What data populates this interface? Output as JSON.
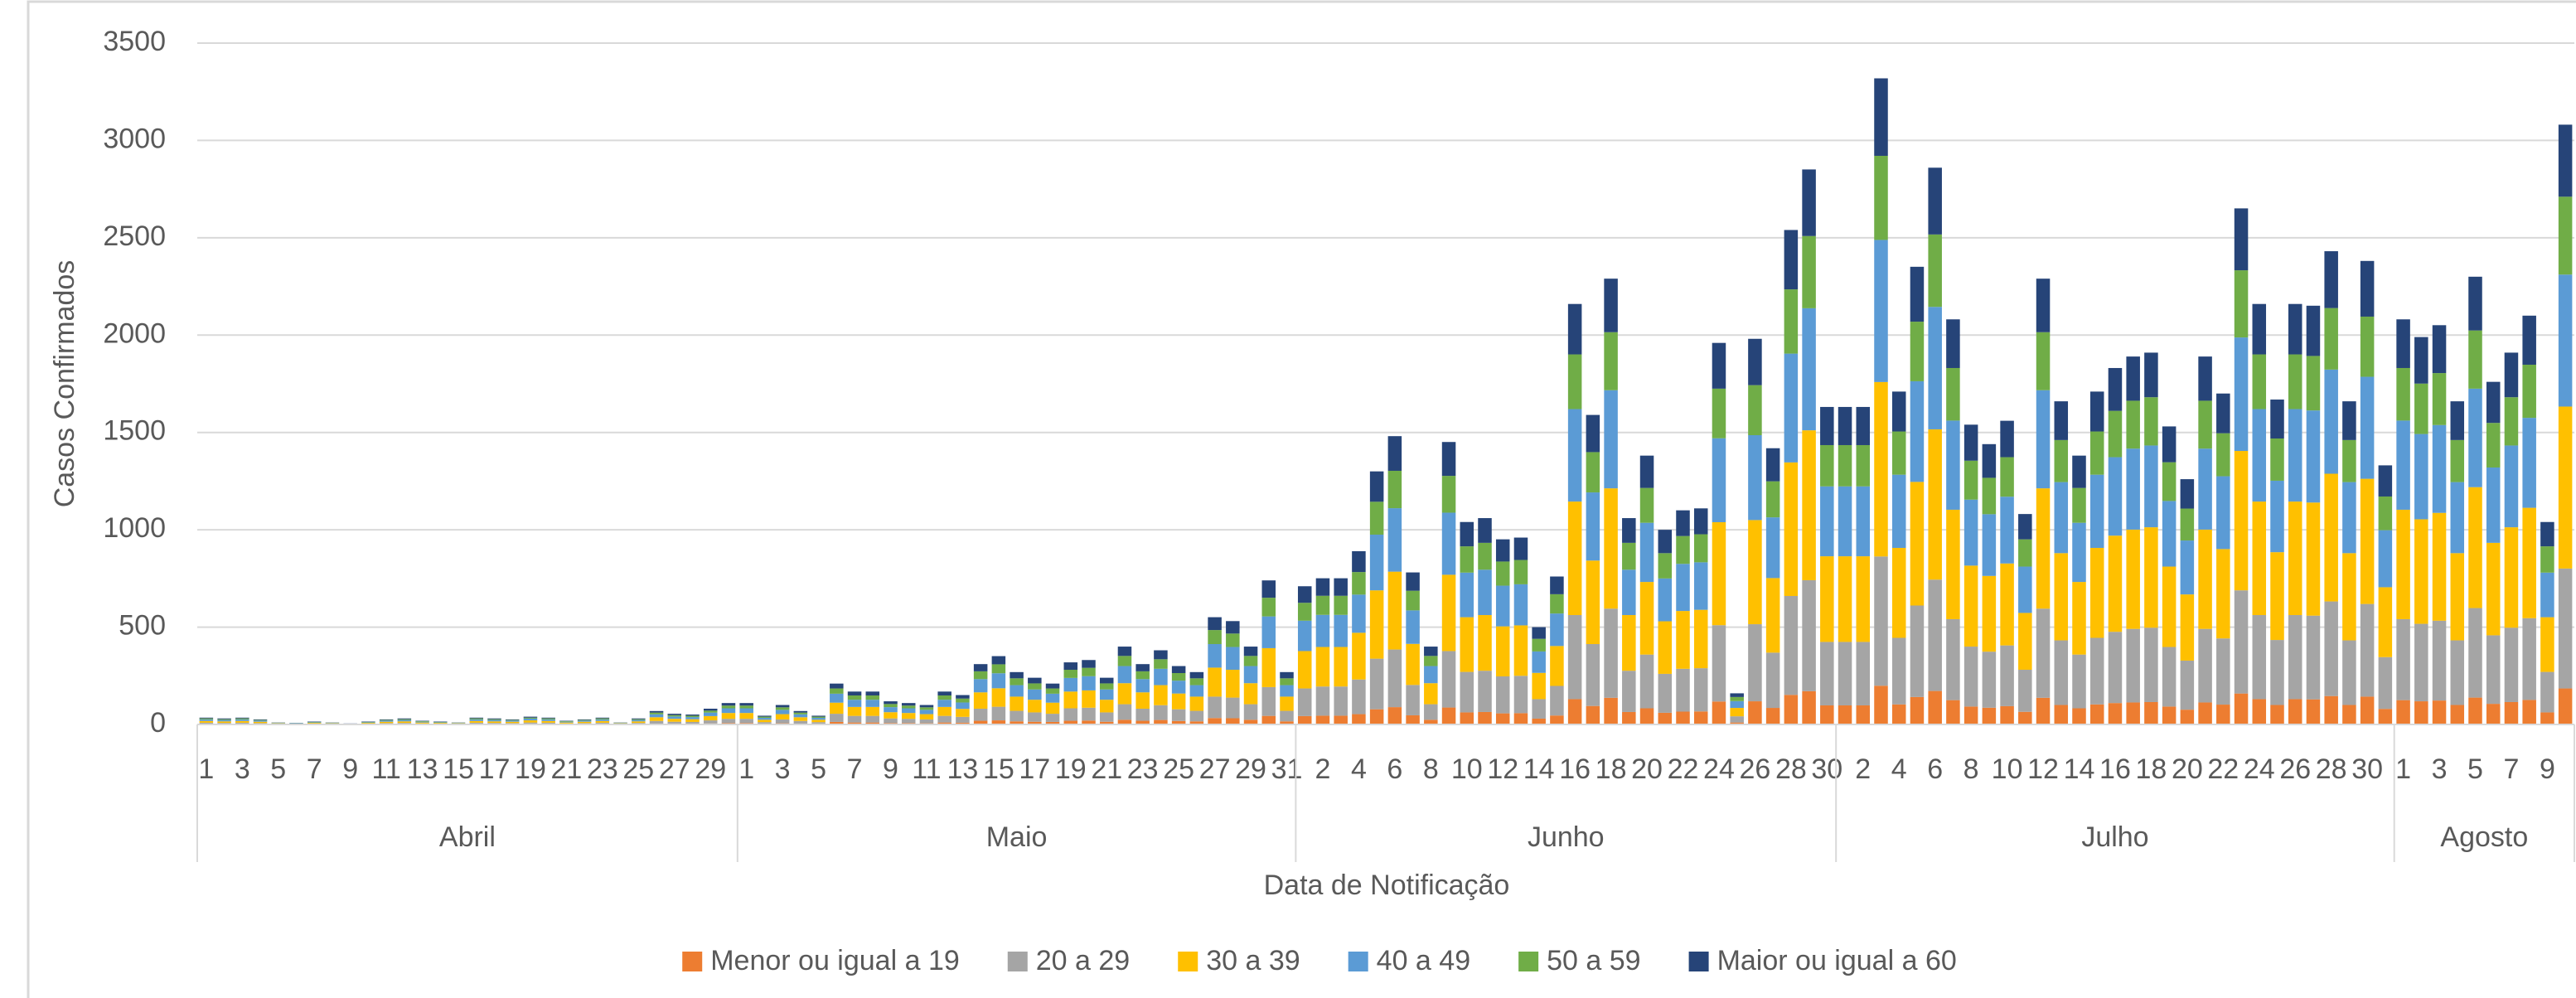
{
  "chart_data": {
    "type": "stacked_bar",
    "y_label": "Casos Confirmados",
    "x_label": "Data de Notificação",
    "ylim": [
      0,
      3500
    ],
    "yticks": [
      0,
      500,
      1000,
      1500,
      2000,
      2500,
      3000,
      3500
    ],
    "grid": true,
    "legend": "bottom",
    "x_groups": [
      {
        "label": "Abril",
        "span": 30
      },
      {
        "label": "Maio",
        "span": 31
      },
      {
        "label": "Junho",
        "span": 30
      },
      {
        "label": "Julho",
        "span": 31
      },
      {
        "label": "Agosto",
        "span": 10
      }
    ],
    "categories": [
      "1",
      null,
      "3",
      null,
      "5",
      null,
      "7",
      null,
      "9",
      null,
      "11",
      null,
      "13",
      null,
      "15",
      null,
      "17",
      null,
      "19",
      null,
      "21",
      null,
      "23",
      null,
      "25",
      null,
      "27",
      null,
      "29",
      null,
      "1",
      null,
      "3",
      null,
      "5",
      null,
      "7",
      null,
      "9",
      null,
      "11",
      null,
      "13",
      null,
      "15",
      null,
      "17",
      null,
      "19",
      null,
      "21",
      null,
      "23",
      null,
      "25",
      null,
      "27",
      null,
      "29",
      null,
      "31",
      null,
      "2",
      null,
      "4",
      null,
      "6",
      null,
      "8",
      null,
      "10",
      null,
      "12",
      null,
      "14",
      null,
      "16",
      null,
      "18",
      null,
      "20",
      null,
      "22",
      null,
      "24",
      null,
      "26",
      null,
      "28",
      null,
      "30",
      null,
      "2",
      null,
      "4",
      null,
      "6",
      null,
      "8",
      null,
      "10",
      null,
      "12",
      null,
      "14",
      null,
      "16",
      null,
      "18",
      null,
      "20",
      null,
      "22",
      null,
      "24",
      null,
      "26",
      null,
      "28",
      null,
      "30",
      null,
      "1",
      null,
      "3",
      null,
      "5",
      null,
      "7",
      null,
      "9",
      null
    ],
    "series": [
      {
        "name": "Menor ou igual a 19",
        "color": "#ed7d31",
        "values": [
          2,
          2,
          2,
          2,
          1,
          0,
          1,
          1,
          0,
          1,
          2,
          2,
          1,
          1,
          1,
          2,
          2,
          2,
          2,
          2,
          1,
          2,
          2,
          1,
          2,
          4,
          3,
          3,
          5,
          7,
          7,
          3,
          6,
          4,
          3,
          13,
          10,
          10,
          7,
          7,
          6,
          10,
          9,
          19,
          21,
          16,
          14,
          13,
          19,
          20,
          14,
          24,
          19,
          23,
          18,
          16,
          33,
          32,
          24,
          44,
          16,
          43,
          45,
          45,
          53,
          78,
          89,
          47,
          24,
          87,
          62,
          64,
          57,
          58,
          30,
          46,
          130,
          95,
          137,
          64,
          83,
          60,
          66,
          67,
          118,
          10,
          119,
          85,
          152,
          171,
          98,
          98,
          98,
          199,
          103,
          141,
          172,
          125,
          92,
          86,
          94,
          65,
          137,
          100,
          83,
          103,
          110,
          113,
          115,
          92,
          76,
          113,
          102,
          159,
          130,
          100,
          130,
          129,
          146,
          100,
          143,
          80,
          125,
          119,
          123,
          100,
          138,
          106,
          115,
          126,
          62,
          185
        ]
      },
      {
        "name": "20 a 29",
        "color": "#a5a5a5",
        "values": [
          7,
          6,
          7,
          5,
          2,
          2,
          3,
          2,
          1,
          3,
          5,
          6,
          4,
          3,
          2,
          7,
          6,
          5,
          8,
          7,
          4,
          5,
          7,
          2,
          6,
          14,
          11,
          10,
          16,
          22,
          22,
          9,
          20,
          14,
          9,
          42,
          34,
          34,
          24,
          22,
          20,
          34,
          30,
          62,
          70,
          54,
          48,
          42,
          64,
          66,
          48,
          80,
          62,
          76,
          60,
          54,
          110,
          106,
          80,
          148,
          54,
          142,
          150,
          150,
          178,
          260,
          296,
          156,
          80,
          290,
          208,
          212,
          190,
          192,
          100,
          152,
          432,
          318,
          458,
          212,
          276,
          200,
          220,
          222,
          392,
          32,
          396,
          284,
          508,
          570,
          326,
          326,
          326,
          664,
          342,
          470,
          572,
          416,
          308,
          288,
          312,
          216,
          458,
          332,
          276,
          342,
          366,
          378,
          382,
          306,
          252,
          378,
          340,
          530,
          432,
          334,
          432,
          430,
          486,
          332,
          476,
          266,
          416,
          398,
          410,
          332,
          460,
          352,
          382,
          420,
          208,
          616
        ]
      },
      {
        "name": "30 a 39",
        "color": "#ffc000",
        "values": [
          9,
          8,
          9,
          7,
          3,
          2,
          4,
          3,
          1,
          4,
          7,
          8,
          5,
          4,
          3,
          9,
          8,
          7,
          11,
          9,
          5,
          7,
          9,
          3,
          8,
          19,
          15,
          14,
          22,
          30,
          30,
          12,
          27,
          19,
          12,
          57,
          46,
          46,
          32,
          30,
          27,
          46,
          41,
          84,
          95,
          73,
          65,
          57,
          86,
          89,
          65,
          108,
          84,
          103,
          81,
          73,
          149,
          143,
          108,
          200,
          73,
          192,
          203,
          203,
          240,
          351,
          400,
          211,
          108,
          392,
          281,
          286,
          257,
          259,
          135,
          205,
          583,
          429,
          618,
          286,
          373,
          270,
          297,
          300,
          529,
          43,
          535,
          383,
          686,
          770,
          440,
          440,
          440,
          896,
          462,
          635,
          772,
          562,
          416,
          389,
          421,
          292,
          618,
          448,
          373,
          462,
          494,
          510,
          516,
          413,
          340,
          510,
          459,
          716,
          583,
          451,
          583,
          581,
          656,
          448,
          643,
          359,
          562,
          537,
          554,
          448,
          621,
          475,
          516,
          567,
          281,
          832
        ]
      },
      {
        "name": "40 a 49",
        "color": "#5b9bd5",
        "values": [
          8,
          7,
          8,
          6,
          2,
          2,
          3,
          2,
          1,
          3,
          6,
          7,
          4,
          3,
          2,
          8,
          7,
          6,
          9,
          8,
          4,
          6,
          8,
          2,
          7,
          15,
          12,
          11,
          18,
          24,
          24,
          10,
          22,
          15,
          10,
          46,
          37,
          37,
          26,
          24,
          22,
          37,
          33,
          68,
          77,
          59,
          53,
          46,
          70,
          73,
          53,
          88,
          68,
          84,
          66,
          59,
          121,
          117,
          88,
          163,
          59,
          156,
          165,
          165,
          196,
          286,
          326,
          172,
          88,
          319,
          229,
          233,
          209,
          211,
          110,
          167,
          475,
          350,
          504,
          233,
          304,
          220,
          242,
          244,
          431,
          35,
          436,
          312,
          559,
          627,
          359,
          359,
          359,
          730,
          376,
          517,
          629,
          458,
          339,
          317,
          343,
          238,
          504,
          365,
          304,
          376,
          403,
          416,
          420,
          337,
          277,
          416,
          374,
          583,
          475,
          367,
          475,
          473,
          535,
          365,
          524,
          293,
          458,
          438,
          451,
          365,
          506,
          387,
          420,
          462,
          229,
          678
        ]
      },
      {
        "name": "50 a 59",
        "color": "#70ad47",
        "values": [
          5,
          4,
          5,
          3,
          1,
          1,
          2,
          1,
          1,
          2,
          3,
          4,
          3,
          2,
          1,
          5,
          4,
          3,
          5,
          5,
          3,
          3,
          5,
          1,
          4,
          9,
          7,
          7,
          10,
          14,
          14,
          6,
          13,
          9,
          6,
          27,
          22,
          22,
          16,
          14,
          13,
          22,
          20,
          40,
          46,
          35,
          31,
          27,
          42,
          43,
          31,
          52,
          40,
          49,
          39,
          35,
          72,
          69,
          52,
          96,
          35,
          92,
          98,
          98,
          116,
          169,
          192,
          101,
          52,
          189,
          135,
          138,
          124,
          125,
          65,
          99,
          281,
          207,
          298,
          138,
          179,
          130,
          143,
          144,
          255,
          21,
          257,
          185,
          330,
          371,
          212,
          212,
          212,
          432,
          222,
          306,
          372,
          270,
          200,
          187,
          203,
          140,
          298,
          216,
          179,
          222,
          238,
          246,
          248,
          199,
          164,
          246,
          221,
          345,
          281,
          217,
          281,
          280,
          316,
          216,
          309,
          173,
          270,
          259,
          267,
          216,
          299,
          229,
          248,
          273,
          135,
          400
        ]
      },
      {
        "name": "Maior ou igual a 60",
        "color": "#264478",
        "values": [
          4,
          4,
          4,
          3,
          1,
          1,
          2,
          1,
          1,
          2,
          3,
          4,
          2,
          2,
          1,
          4,
          4,
          3,
          5,
          4,
          2,
          3,
          4,
          1,
          4,
          8,
          7,
          6,
          10,
          13,
          13,
          5,
          12,
          8,
          5,
          25,
          20,
          20,
          14,
          13,
          12,
          20,
          18,
          37,
          42,
          32,
          29,
          25,
          38,
          40,
          29,
          48,
          37,
          46,
          36,
          32,
          66,
          64,
          48,
          89,
          32,
          85,
          90,
          90,
          107,
          156,
          178,
          94,
          48,
          174,
          125,
          127,
          114,
          115,
          60,
          91,
          259,
          191,
          275,
          127,
          166,
          120,
          132,
          133,
          235,
          19,
          238,
          170,
          305,
          342,
          196,
          196,
          196,
          398,
          205,
          282,
          343,
          250,
          185,
          173,
          187,
          130,
          275,
          199,
          166,
          205,
          220,
          227,
          229,
          184,
          151,
          227,
          204,
          318,
          259,
          200,
          259,
          258,
          292,
          199,
          286,
          160,
          250,
          239,
          246,
          199,
          276,
          211,
          229,
          252,
          125,
          370
        ]
      }
    ]
  }
}
